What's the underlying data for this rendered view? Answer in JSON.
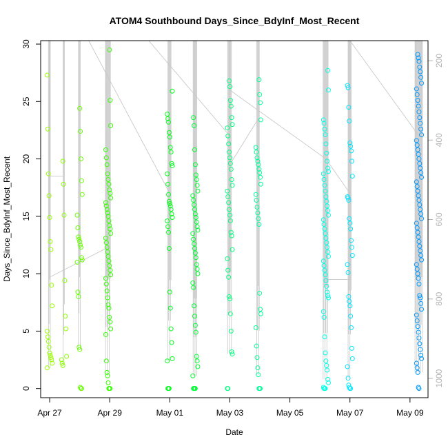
{
  "chart_data": {
    "type": "scatter",
    "title": "ATOM4 Southbound Days_Since_BdyInf_Most_Recent",
    "xlabel": "Date",
    "ylabel": "Days_Since_BdyInf_Most_Recent",
    "x_ticks": [
      {
        "label": "Apr 27",
        "day": 0
      },
      {
        "label": "Apr 29",
        "day": 2
      },
      {
        "label": "May 01",
        "day": 4
      },
      {
        "label": "May 03",
        "day": 6
      },
      {
        "label": "May 05",
        "day": 8
      },
      {
        "label": "May 07",
        "day": 10
      },
      {
        "label": "May 09",
        "day": 12
      }
    ],
    "xlim_days": [
      -0.3,
      12.6
    ],
    "ylim": [
      -0.8,
      30.3
    ],
    "y_ticks": [
      0,
      5,
      10,
      15,
      20,
      25,
      30
    ],
    "right_axis": {
      "ticks": [
        200,
        400,
        600,
        800,
        1000
      ],
      "color": "#b3b3b3",
      "line_color": "#c8c8c8"
    },
    "point_style": "open-circle",
    "groups": [
      {
        "day": 0.0,
        "color": "#99ff00",
        "values": [
          27.3,
          22.6,
          18.7,
          16.8,
          14.9,
          12.8,
          12.1,
          9.0,
          7.2,
          5.0,
          4.5,
          4.1,
          3.6,
          3.1,
          2.9,
          2.7,
          2.5,
          2.2,
          1.8
        ]
      },
      {
        "day": 0.48,
        "color": "#8cff00",
        "values": [
          19.8,
          17.8,
          15.1,
          9.4,
          6.3,
          5.2,
          2.8,
          2.5,
          2.2,
          2.0
        ]
      },
      {
        "day": 1.0,
        "color": "#66ff00",
        "values": [
          24.4,
          22.4,
          20.0,
          18.1,
          16.9,
          15.1,
          14.0,
          13.2,
          13.0,
          12.8,
          12.5,
          12.3,
          11.4,
          11.2,
          11.0,
          8.4,
          8.0,
          3.6,
          3.4,
          0.1,
          0.0,
          0.0
        ]
      },
      {
        "day": 1.95,
        "color": "#33ff00",
        "values": [
          29.5,
          25.1,
          22.9,
          20.8,
          20.1,
          19.5,
          18.7,
          18.2,
          17.8,
          17.3,
          17.0,
          16.6,
          16.2,
          15.9,
          15.6,
          15.3,
          15.0,
          14.6,
          14.2,
          13.9,
          13.5,
          13.1,
          12.7,
          12.3,
          11.9,
          11.5,
          11.1,
          10.7,
          10.3,
          9.9,
          9.6,
          9.1,
          8.5,
          7.9,
          7.3,
          7.0,
          6.2,
          5.8,
          5.2,
          4.7,
          2.4,
          1.4,
          1.1,
          0.5,
          0.0,
          0.0,
          0.0
        ]
      },
      {
        "day": 4.0,
        "color": "#00ff1a",
        "values": [
          25.9,
          23.9,
          23.5,
          23.2,
          22.3,
          21.9,
          21.0,
          20.6,
          19.6,
          19.4,
          18.7,
          17.8,
          16.9,
          16.3,
          16.1,
          15.9,
          15.6,
          15.2,
          14.9,
          14.6,
          14.1,
          13.6,
          12.2,
          8.4,
          7.0,
          5.2,
          4.0,
          2.6,
          2.4,
          0.0,
          0.0,
          0.0
        ]
      },
      {
        "day": 4.85,
        "color": "#00ff33",
        "values": [
          23.6,
          22.9,
          20.8,
          19.5,
          18.6,
          18.2,
          17.7,
          17.2,
          16.8,
          16.4,
          16.0,
          15.6,
          15.2,
          14.9,
          14.5,
          14.1,
          13.8,
          13.5,
          13.0,
          12.6,
          12.2,
          11.8,
          11.4,
          10.8,
          10.4,
          10.0,
          9.2,
          8.8,
          7.2,
          6.3,
          5.5,
          4.9,
          2.8,
          2.4,
          1.9,
          1.1,
          0.0,
          0.0,
          0.0,
          0.0
        ]
      },
      {
        "day": 6.0,
        "color": "#00ff80",
        "values": [
          26.8,
          26.3,
          25.1,
          24.6,
          23.6,
          23.0,
          22.7,
          22.0,
          21.3,
          20.6,
          20.1,
          19.6,
          19.1,
          18.2,
          17.7,
          17.2,
          16.7,
          16.2,
          15.6,
          15.1,
          14.6,
          13.6,
          13.3,
          12.1,
          11.3,
          10.3,
          9.7,
          8.0,
          7.8,
          6.5,
          5.0,
          3.2,
          3.0,
          0.0,
          0.0
        ]
      },
      {
        "day": 6.95,
        "color": "#00ff99",
        "values": [
          26.9,
          25.6,
          24.9,
          23.4,
          21.0,
          20.6,
          20.1,
          19.8,
          19.5,
          19.1,
          18.8,
          18.4,
          17.8,
          16.9,
          16.4,
          15.8,
          15.3,
          14.8,
          14.3,
          8.3,
          6.9,
          6.5,
          5.3,
          3.7,
          2.7,
          1.8,
          1.2,
          0.0,
          0.0,
          0.0
        ]
      },
      {
        "day": 9.2,
        "color": "#00ffe6",
        "values": [
          27.7,
          26.0,
          23.4,
          23.1,
          22.6,
          22.1,
          21.3,
          20.5,
          19.8,
          19.2,
          18.9,
          18.7,
          18.2,
          17.7,
          17.2,
          16.7,
          16.3,
          15.9,
          15.5,
          15.1,
          14.7,
          14.3,
          13.9,
          13.5,
          13.1,
          12.7,
          12.3,
          11.9,
          11.5,
          11.1,
          10.7,
          10.3,
          9.9,
          9.4,
          8.9,
          8.4,
          8.1,
          7.9,
          6.7,
          6.2,
          4.5,
          3.1,
          2.4,
          2.0,
          1.6,
          0.8,
          0.5,
          0.1,
          0.0,
          0.0,
          0.0
        ]
      },
      {
        "day": 10.0,
        "color": "#00e6ff",
        "values": [
          26.4,
          26.2,
          24.5,
          23.3,
          21.4,
          21.1,
          20.7,
          19.8,
          18.5,
          16.7,
          16.6,
          16.4,
          14.8,
          14.4,
          13.9,
          12.9,
          12.3,
          11.6,
          10.8,
          10.1,
          8.0,
          7.6,
          7.2,
          6.3,
          5.3,
          3.5,
          2.6,
          1.9,
          0.9,
          0.3,
          0.1,
          0.0,
          0.0
        ]
      },
      {
        "day": 12.3,
        "color": "#0099ff",
        "values": [
          29.1,
          28.8,
          28.5,
          28.0,
          27.6,
          27.1,
          26.6,
          26.1,
          25.6,
          25.1,
          24.6,
          24.1,
          23.6,
          23.1,
          22.6,
          22.1,
          21.6,
          21.2,
          20.8,
          20.4,
          20.0,
          19.6,
          19.2,
          18.8,
          18.4,
          18.0,
          17.6,
          17.2,
          16.8,
          16.4,
          16.0,
          15.6,
          15.2,
          14.8,
          14.4,
          14.0,
          13.6,
          13.2,
          12.8,
          12.4,
          12.0,
          11.6,
          11.2,
          10.8,
          10.4,
          10.0,
          9.6,
          9.1,
          8.1,
          7.9,
          7.4,
          6.9,
          6.4,
          5.9,
          5.4,
          4.9,
          4.4,
          3.9,
          3.4,
          2.9,
          2.6,
          2.2,
          1.8,
          1.4,
          0.1,
          0.0
        ]
      }
    ]
  }
}
